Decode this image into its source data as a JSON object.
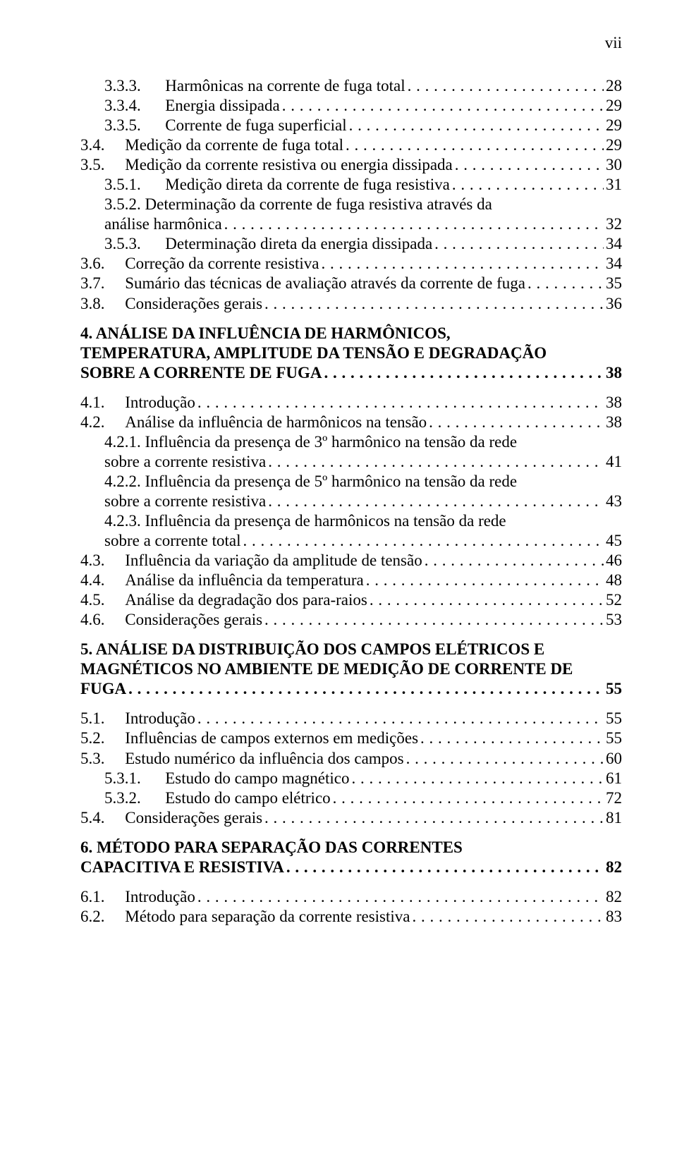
{
  "page_marker": "vii",
  "leader_dots": ". . . . . . . . . . . . . . . . . . . . . . . . . . . . . . . . . . . . . . . . . . . . . . . . . . . . . . . . . . . . . . . . . . . . . . . . . . . . . . . . . . . . . . . . . . . . . . . . . . . . . . . . . . . . . . . . . . . . . . . . . . . . . . . . . . . .",
  "entries": [
    {
      "kind": "line",
      "indent": "ind-1",
      "num": "3.3.3.",
      "sep": "      ",
      "title": "Harmônicas na corrente de fuga total",
      "page": "28"
    },
    {
      "kind": "line",
      "indent": "ind-1",
      "num": "3.3.4.",
      "sep": "      ",
      "title": "Energia dissipada",
      "page": "29"
    },
    {
      "kind": "line",
      "indent": "ind-1",
      "num": "3.3.5.",
      "sep": "      ",
      "title": "Corrente de fuga superficial",
      "page": "29"
    },
    {
      "kind": "line",
      "indent": "",
      "num": "3.4.",
      "sep": "     ",
      "title": "Medição da corrente de fuga total",
      "page": "29"
    },
    {
      "kind": "line",
      "indent": "",
      "num": "3.5.",
      "sep": "     ",
      "title": "Medição da corrente resistiva ou energia dissipada",
      "page": "30"
    },
    {
      "kind": "line",
      "indent": "ind-1",
      "num": "3.5.1.",
      "sep": "      ",
      "title": "Medição direta da corrente de fuga resistiva",
      "page": "31"
    },
    {
      "kind": "wrap",
      "indent": "ind-1",
      "line1": "3.5.2.      Determinação da corrente de fuga resistiva através da",
      "tail": "análise harmônica",
      "page": "32"
    },
    {
      "kind": "line",
      "indent": "ind-1",
      "num": "3.5.3.",
      "sep": "      ",
      "title": "Determinação direta da energia dissipada",
      "page": "34"
    },
    {
      "kind": "line",
      "indent": "",
      "num": "3.6.",
      "sep": "     ",
      "title": "Correção da corrente resistiva",
      "page": "34"
    },
    {
      "kind": "line",
      "indent": "",
      "num": "3.7.",
      "sep": "     ",
      "title": "Sumário das técnicas de avaliação através da corrente de fuga",
      "page": "35"
    },
    {
      "kind": "line",
      "indent": "",
      "num": "3.8.",
      "sep": "     ",
      "title": "Considerações gerais",
      "page": "36"
    },
    {
      "kind": "spacer",
      "size": "md"
    },
    {
      "kind": "wrap",
      "indent": "",
      "bold": true,
      "line1": "4.     ANÁLISE DA INFLUÊNCIA DE HARMÔNICOS,",
      "line2": "TEMPERATURA, AMPLITUDE DA TENSÃO E DEGRADAÇÃO",
      "tail": "SOBRE A CORRENTE DE FUGA",
      "page": "38"
    },
    {
      "kind": "spacer",
      "size": "md"
    },
    {
      "kind": "line",
      "indent": "",
      "num": "4.1.",
      "sep": "     ",
      "title": "Introdução",
      "page": "38"
    },
    {
      "kind": "line",
      "indent": "",
      "num": "4.2.",
      "sep": "     ",
      "title": "Análise da influência de harmônicos na tensão",
      "page": "38"
    },
    {
      "kind": "wrap",
      "indent": "ind-1",
      "line1": "4.2.1.      Influência da presença de 3º harmônico na tensão da rede",
      "tail": "sobre a corrente resistiva",
      "page": "41"
    },
    {
      "kind": "wrap",
      "indent": "ind-1",
      "line1": "4.2.2.      Influência da presença de 5º harmônico na tensão da rede",
      "tail": "sobre a corrente resistiva",
      "page": "43"
    },
    {
      "kind": "wrap",
      "indent": "ind-1",
      "line1": "4.2.3.      Influência da presença de harmônicos na tensão da rede",
      "tail": "sobre a corrente total",
      "page": "45"
    },
    {
      "kind": "line",
      "indent": "",
      "num": "4.3.",
      "sep": "     ",
      "title": "Influência da variação da amplitude de tensão",
      "page": "46"
    },
    {
      "kind": "line",
      "indent": "",
      "num": "4.4.",
      "sep": "     ",
      "title": "Análise da influência da temperatura",
      "page": "48"
    },
    {
      "kind": "line",
      "indent": "",
      "num": "4.5.",
      "sep": "     ",
      "title": "Análise da degradação dos para-raios",
      "page": "52"
    },
    {
      "kind": "line",
      "indent": "",
      "num": "4.6.",
      "sep": "     ",
      "title": "Considerações gerais",
      "page": "53"
    },
    {
      "kind": "spacer",
      "size": "md"
    },
    {
      "kind": "wrap",
      "indent": "",
      "bold": true,
      "line1": "5.     ANÁLISE DA DISTRIBUIÇÃO DOS CAMPOS ELÉTRICOS E",
      "line2": "MAGNÉTICOS NO AMBIENTE DE MEDIÇÃO DE CORRENTE DE",
      "tail": "FUGA",
      "page": "55"
    },
    {
      "kind": "spacer",
      "size": "md"
    },
    {
      "kind": "line",
      "indent": "",
      "num": "5.1.",
      "sep": "     ",
      "title": "Introdução",
      "page": "55"
    },
    {
      "kind": "line",
      "indent": "",
      "num": "5.2.",
      "sep": "     ",
      "title": "Influências de campos externos em medições",
      "page": "55"
    },
    {
      "kind": "line",
      "indent": "",
      "num": "5.3.",
      "sep": "     ",
      "title": "Estudo numérico da influência dos campos",
      "page": "60"
    },
    {
      "kind": "line",
      "indent": "ind-1",
      "num": "5.3.1.",
      "sep": "      ",
      "title": "Estudo do campo magnético",
      "page": "61"
    },
    {
      "kind": "line",
      "indent": "ind-1",
      "num": "5.3.2.",
      "sep": "      ",
      "title": "Estudo do campo elétrico",
      "page": "72"
    },
    {
      "kind": "line",
      "indent": "",
      "num": "5.4.",
      "sep": "     ",
      "title": "Considerações gerais",
      "page": "81"
    },
    {
      "kind": "spacer",
      "size": "md"
    },
    {
      "kind": "wrap",
      "indent": "",
      "bold": true,
      "line1": "6.     MÉTODO PARA SEPARAÇÃO DAS CORRENTES",
      "tail": "CAPACITIVA E RESISTIVA",
      "page": "82"
    },
    {
      "kind": "spacer",
      "size": "md"
    },
    {
      "kind": "line",
      "indent": "",
      "num": "6.1.",
      "sep": "     ",
      "title": "Introdução",
      "page": "82"
    },
    {
      "kind": "line",
      "indent": "",
      "num": "6.2.",
      "sep": "     ",
      "title": "Método para separação da corrente resistiva",
      "page": "83"
    }
  ]
}
